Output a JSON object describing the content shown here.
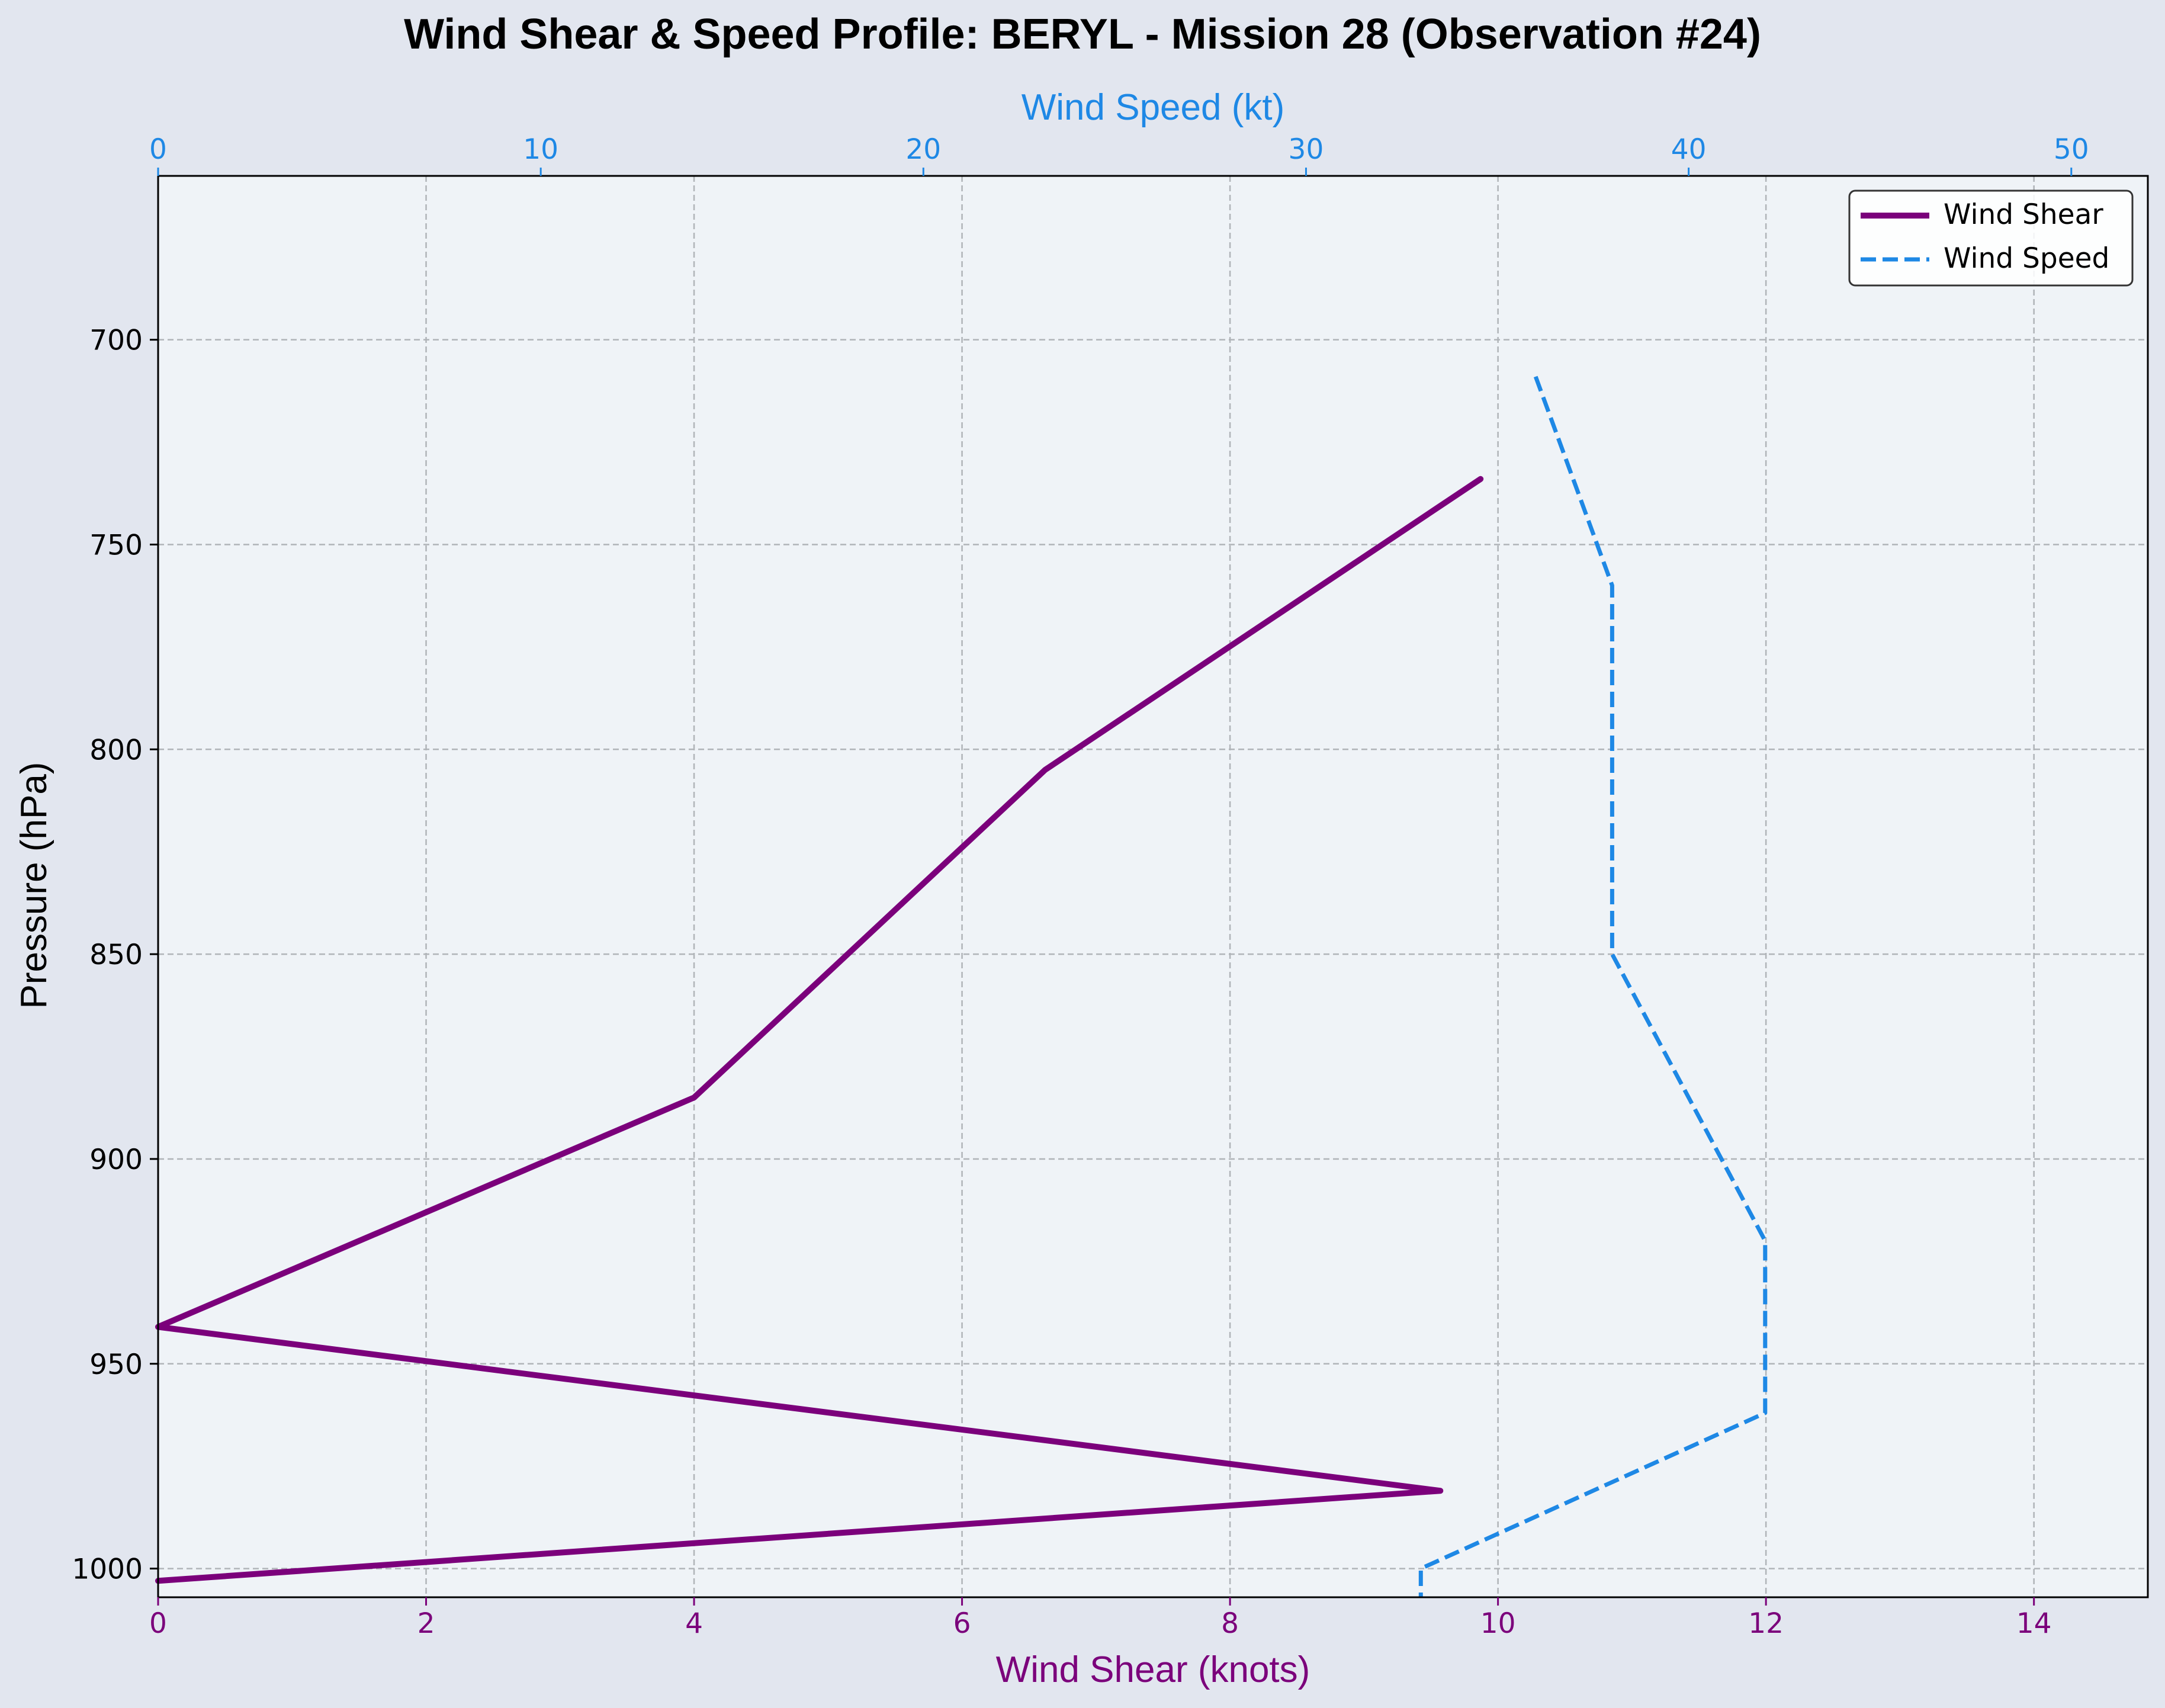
{
  "chart_data": {
    "type": "line",
    "title": "Wind Shear & Speed Profile: BERYL - Mission 28 (Observation #24)",
    "ylabel": "Pressure (hPa)",
    "ylim": [
      1007,
      660
    ],
    "y_inverted": true,
    "y_ticks": [
      "700",
      "750",
      "800",
      "850",
      "900",
      "950",
      "1000"
    ],
    "bottom_axis": {
      "label": "Wind Shear (knots)",
      "xlim": [
        0,
        14.85
      ],
      "ticks": [
        "0",
        "2",
        "4",
        "6",
        "8",
        "10",
        "12",
        "14"
      ],
      "color": "#7b007b"
    },
    "top_axis": {
      "label": "Wind Speed (kt)",
      "xlim": [
        0,
        52
      ],
      "ticks": [
        "0",
        "10",
        "20",
        "30",
        "40",
        "50"
      ],
      "color": "#1e88e5"
    },
    "grid": true,
    "legend_position": "top-right",
    "series": [
      {
        "name": "Wind Shear",
        "axis": "bottom",
        "style": "solid",
        "color": "#7b007b",
        "points": [
          {
            "x": 9.87,
            "y": 734
          },
          {
            "x": 6.62,
            "y": 805
          },
          {
            "x": 4.0,
            "y": 885
          },
          {
            "x": 0.0,
            "y": 941
          },
          {
            "x": 9.57,
            "y": 981
          },
          {
            "x": 0.0,
            "y": 1003
          }
        ]
      },
      {
        "name": "Wind Speed",
        "axis": "top",
        "style": "dashed",
        "color": "#1e88e5",
        "points": [
          {
            "x": 36.0,
            "y": 709
          },
          {
            "x": 38.0,
            "y": 760
          },
          {
            "x": 38.0,
            "y": 850
          },
          {
            "x": 42.0,
            "y": 920
          },
          {
            "x": 42.0,
            "y": 962
          },
          {
            "x": 33.0,
            "y": 1000
          },
          {
            "x": 33.0,
            "y": 1007
          }
        ]
      }
    ]
  }
}
